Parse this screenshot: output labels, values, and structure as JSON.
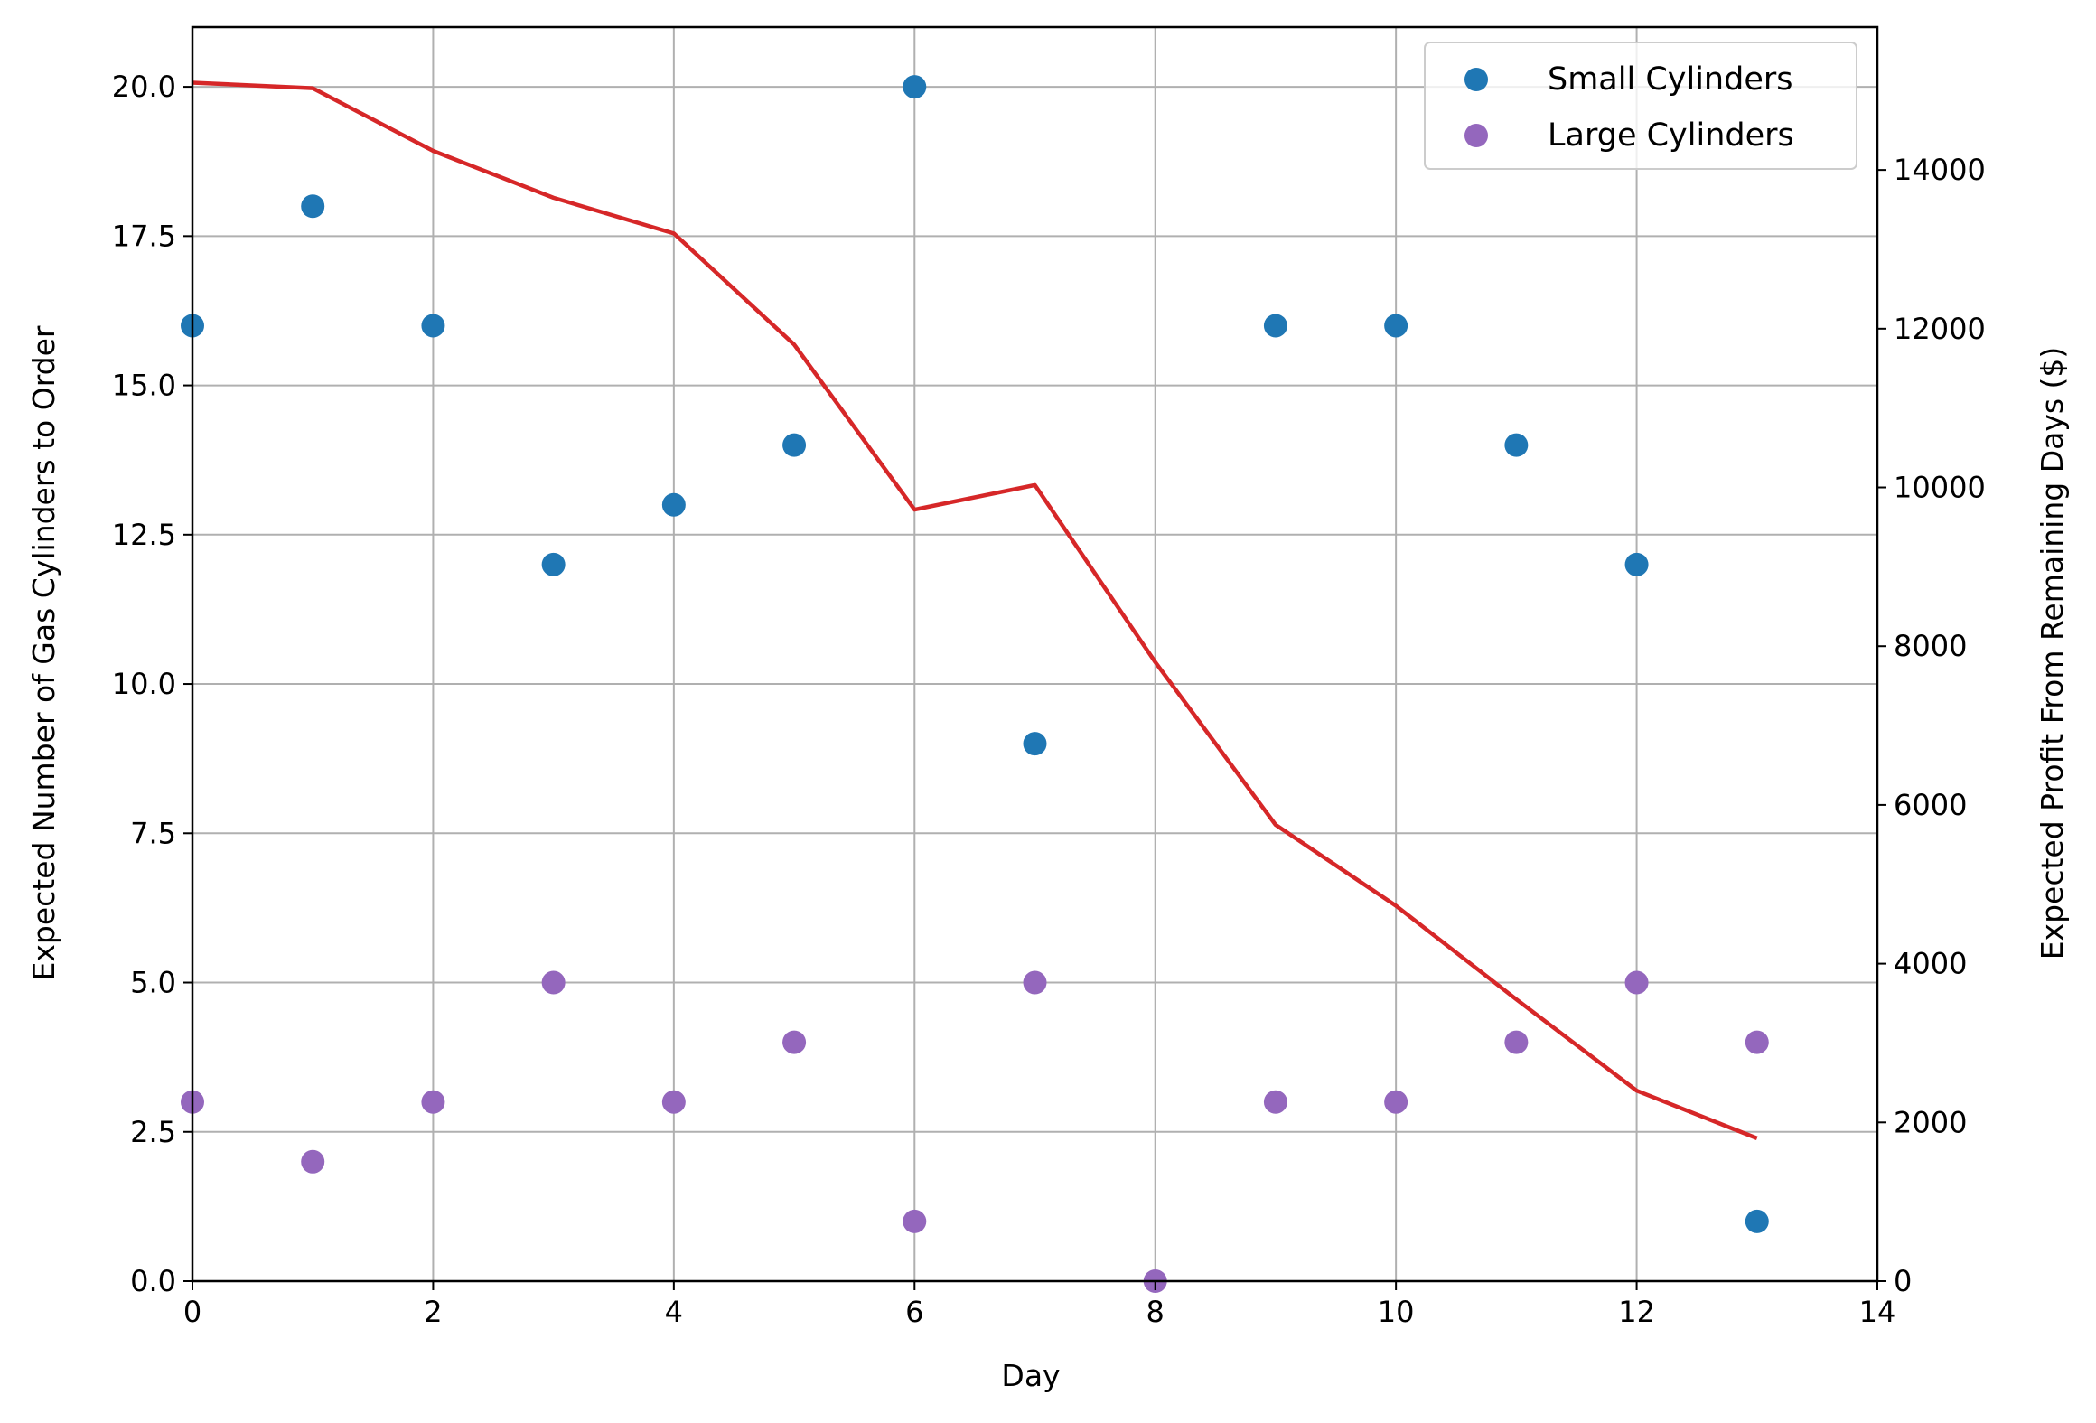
{
  "chart_data": {
    "type": "scatter",
    "xlabel": "Day",
    "ylabel": "Expected Number of Gas Cylinders to Order",
    "y2label": "Expected Profit From Remaining Days ($)",
    "xlim": [
      0,
      14
    ],
    "ylim": [
      0,
      21
    ],
    "y2lim": [
      0,
      15800
    ],
    "xticks": [
      "0",
      "2",
      "4",
      "6",
      "8",
      "10",
      "12",
      "14"
    ],
    "yticks": [
      "0.0",
      "2.5",
      "5.0",
      "7.5",
      "10.0",
      "12.5",
      "15.0",
      "17.5",
      "20.0"
    ],
    "y2ticks": [
      "0",
      "2000",
      "4000",
      "6000",
      "8000",
      "10000",
      "12000",
      "14000"
    ],
    "grid": true,
    "legend_position": "top-right",
    "series": [
      {
        "name": "Small Cylinders",
        "kind": "scatter",
        "axis": "left",
        "color": "#1f77b4",
        "x": [
          0,
          1,
          2,
          3,
          4,
          5,
          6,
          7,
          9,
          10,
          11,
          12,
          13
        ],
        "y": [
          16,
          18,
          16,
          12,
          13,
          14,
          20,
          9,
          16,
          16,
          14,
          12,
          1
        ]
      },
      {
        "name": "Large Cylinders",
        "kind": "scatter",
        "axis": "left",
        "color": "#9467bd",
        "x": [
          0,
          1,
          2,
          3,
          4,
          5,
          6,
          7,
          8,
          9,
          10,
          11,
          12,
          13
        ],
        "y": [
          3,
          2,
          3,
          5,
          3,
          4,
          1,
          5,
          0,
          3,
          3,
          4,
          5,
          4
        ]
      },
      {
        "kind": "line",
        "axis": "right",
        "color": "#d62728",
        "x": [
          0,
          1,
          2,
          3,
          4,
          5,
          6,
          7,
          8,
          9,
          10,
          11,
          12,
          13
        ],
        "y": [
          15100,
          15030,
          14240,
          13650,
          13200,
          11800,
          9720,
          10030,
          7800,
          5750,
          4730,
          3550,
          2400,
          1800
        ]
      }
    ]
  }
}
